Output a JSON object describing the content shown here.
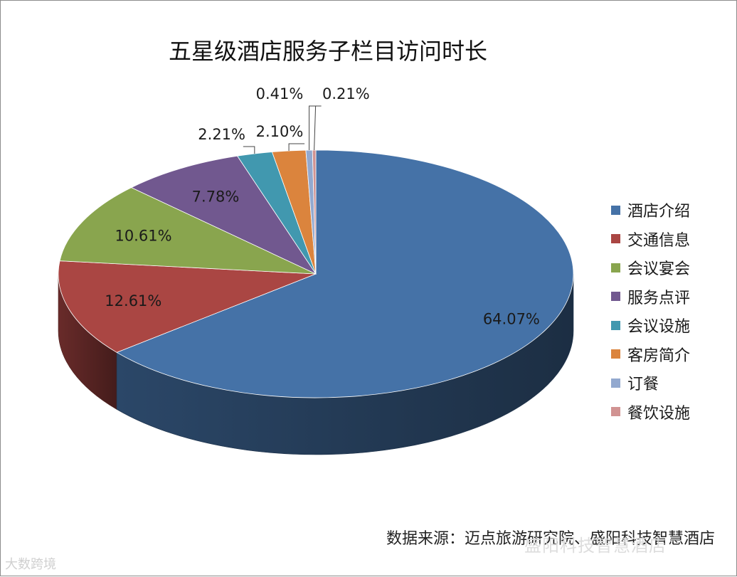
{
  "chart_data": {
    "type": "pie",
    "title": "五星级酒店服务子栏目访问时长",
    "categories": [
      "酒店介绍",
      "交通信息",
      "会议宴会",
      "服务点评",
      "会议设施",
      "客房简介",
      "订餐",
      "餐饮设施"
    ],
    "values": [
      64.07,
      12.61,
      10.61,
      7.78,
      2.21,
      2.1,
      0.41,
      0.21
    ],
    "labels": [
      "64.07%",
      "12.61%",
      "10.61%",
      "7.78%",
      "2.21%",
      "2.10%",
      "0.41%",
      "0.21%"
    ],
    "colors": [
      "#4572a7",
      "#aa4643",
      "#89a54e",
      "#71588f",
      "#4198af",
      "#db843d",
      "#93a9cf",
      "#d19392"
    ],
    "legend": "right",
    "style": "3d"
  },
  "source": "数据来源：迈点旅游研究院、盛阳科技智慧酒店",
  "watermarks": {
    "main": "盛阳科技智慧酒店",
    "corner": "大数跨境"
  }
}
